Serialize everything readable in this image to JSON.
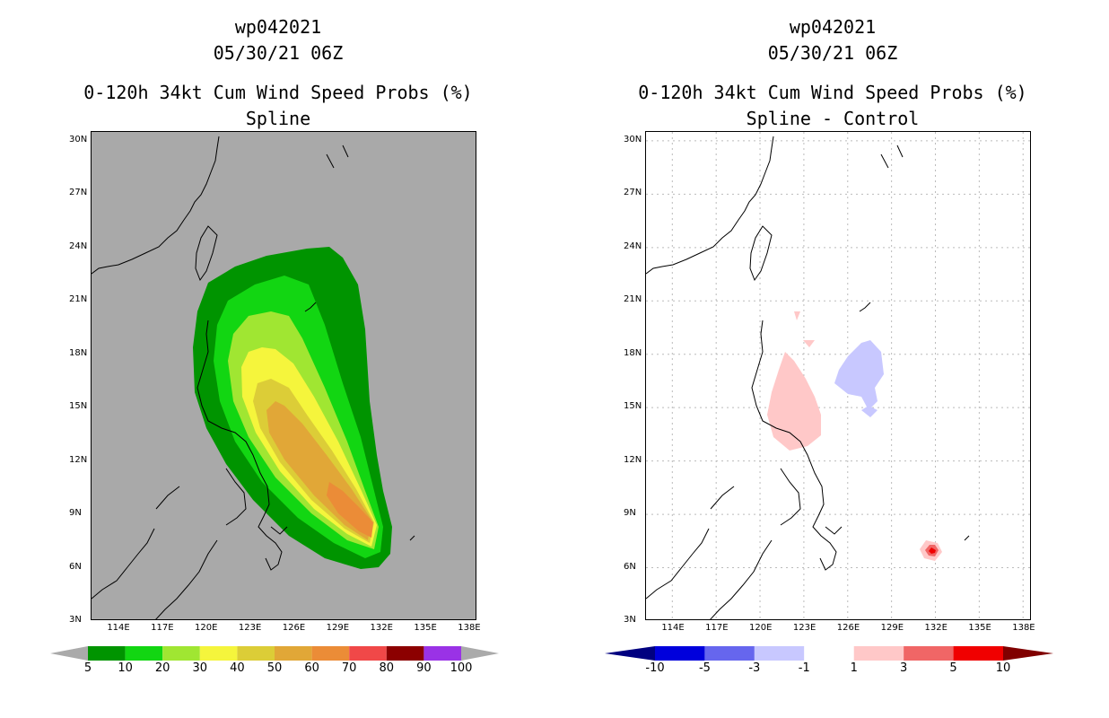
{
  "chart_data": [
    {
      "type": "heatmap",
      "storm_id": "wp042021",
      "datetime": "05/30/21 06Z",
      "title": "0-120h 34kt Cum Wind Speed Probs (%)",
      "subtitle": "Spline",
      "xlabel": "",
      "ylabel": "",
      "x_ticks": [
        "114E",
        "117E",
        "120E",
        "123E",
        "126E",
        "129E",
        "132E",
        "135E",
        "138E"
      ],
      "y_ticks": [
        "30N",
        "27N",
        "24N",
        "21N",
        "18N",
        "15N",
        "12N",
        "9N",
        "6N",
        "3N"
      ],
      "xlim": [
        112.2,
        138.6
      ],
      "ylim": [
        3,
        30.5
      ],
      "background_color": "#a9a9a9",
      "colorbar": {
        "labels": [
          "5",
          "10",
          "20",
          "30",
          "40",
          "50",
          "60",
          "70",
          "80",
          "90",
          "100"
        ],
        "colors": [
          "#009400",
          "#12d612",
          "#a0e632",
          "#f5f53c",
          "#dccd37",
          "#e1a737",
          "#eb8c37",
          "#f04848",
          "#8c0000",
          "#9a32e6"
        ],
        "end_color": "#aaaaaa"
      }
    },
    {
      "type": "heatmap",
      "storm_id": "wp042021",
      "datetime": "05/30/21 06Z",
      "title": "0-120h 34kt Cum Wind Speed Probs (%)",
      "subtitle": "Spline - Control",
      "xlabel": "",
      "ylabel": "",
      "x_ticks": [
        "114E",
        "117E",
        "120E",
        "123E",
        "126E",
        "129E",
        "132E",
        "135E",
        "138E"
      ],
      "y_ticks": [
        "30N",
        "27N",
        "24N",
        "21N",
        "18N",
        "15N",
        "12N",
        "9N",
        "6N",
        "3N"
      ],
      "xlim": [
        112.2,
        138.6
      ],
      "ylim": [
        3,
        30.5
      ],
      "background_color": "#ffffff",
      "colorbar": {
        "labels": [
          "-10",
          "-5",
          "-3",
          "-1",
          "1",
          "3",
          "5",
          "10"
        ],
        "colors": [
          "#0000dc",
          "#6666ee",
          "#c8c8ff",
          "#ffffff",
          "#ffc8c8",
          "#f06666",
          "#f00000"
        ],
        "low_color": "#000080",
        "high_color": "#800000"
      }
    }
  ]
}
